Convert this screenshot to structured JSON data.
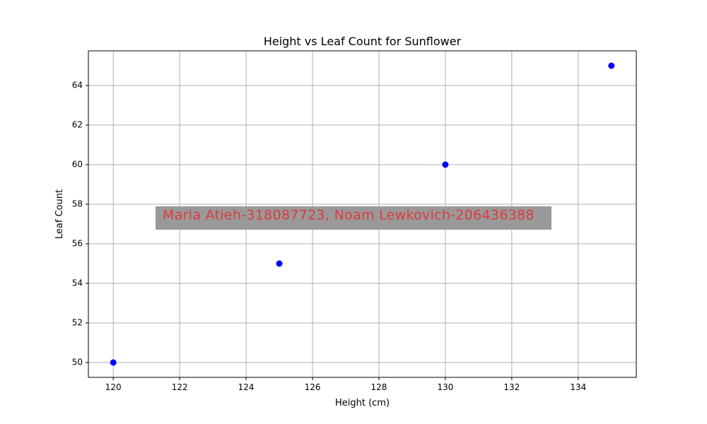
{
  "chart_data": {
    "type": "scatter",
    "title": "Height vs Leaf Count for Sunflower",
    "xlabel": "Height (cm)",
    "ylabel": "Leaf Count",
    "x": [
      120,
      125,
      130,
      135
    ],
    "y": [
      50,
      55,
      60,
      65
    ],
    "xlim": [
      119.25,
      135.75
    ],
    "ylim": [
      49.25,
      65.75
    ],
    "xticks": [
      120,
      122,
      124,
      126,
      128,
      130,
      132,
      134
    ],
    "yticks": [
      50,
      52,
      54,
      56,
      58,
      60,
      62,
      64
    ],
    "grid": true,
    "marker_color": "#0000ff",
    "legend": null
  },
  "watermark": {
    "text": "Maria Atieh-318087723, Noam Lewkovich-206436388",
    "text_color": "#e0393e",
    "box_color": "#999999"
  }
}
